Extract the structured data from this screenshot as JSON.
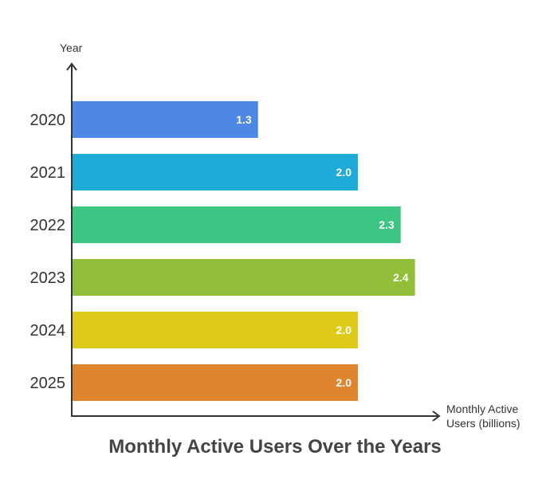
{
  "chart_data": {
    "type": "bar",
    "orientation": "horizontal",
    "title": "Monthly Active Users Over the Years",
    "ylabel": "Year",
    "xlabel_lines": [
      "Monthly Active",
      "Users (billions)"
    ],
    "categories": [
      "2020",
      "2021",
      "2022",
      "2023",
      "2024",
      "2025"
    ],
    "values": [
      1.3,
      2.0,
      2.3,
      2.4,
      2.0,
      2.0
    ],
    "value_labels": [
      "1.3",
      "2.0",
      "2.3",
      "2.4",
      "2.0",
      "2.0"
    ],
    "colors": [
      "#4E88E5",
      "#1EABDA",
      "#3CC583",
      "#93BE3A",
      "#DFCA17",
      "#E0852F"
    ],
    "xlim": [
      0,
      2.6
    ],
    "grid": false,
    "legend": "none"
  }
}
